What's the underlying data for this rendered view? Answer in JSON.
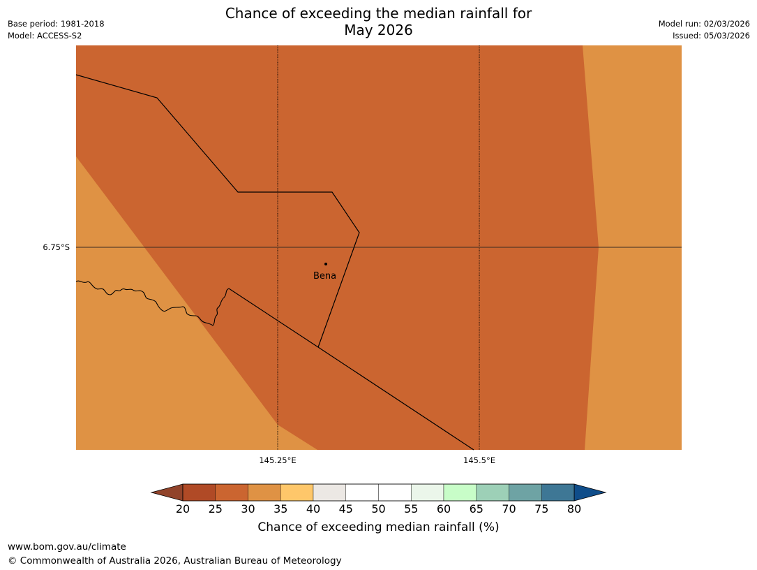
{
  "header": {
    "title_line1": "Chance of exceeding the median rainfall for",
    "title_line2": "May 2026",
    "base_period": "Base period: 1981-2018",
    "model": "Model: ACCESS-S2",
    "model_run": "Model run: 02/03/2026",
    "issued": "Issued: 05/03/2026"
  },
  "map": {
    "lat_label": "6.75°S",
    "lon_labels": [
      "145.25°E",
      "145.5°E"
    ],
    "place_name": "Bena",
    "colors": {
      "band_25_30": "#cb6530",
      "band_30_35": "#df9244",
      "boundary": "#000000",
      "gridline": "#3a2a22"
    }
  },
  "colorbar": {
    "ticks": [
      "20",
      "25",
      "30",
      "35",
      "40",
      "45",
      "50",
      "55",
      "60",
      "65",
      "70",
      "75",
      "80"
    ],
    "under_color": "#91432a",
    "over_color": "#0f4d8a",
    "colors": [
      "#b04a26",
      "#cb6530",
      "#df9244",
      "#fec76a",
      "#ece8e4",
      "#ffffff",
      "#ffffff",
      "#ebf6ea",
      "#c8fdc8",
      "#9dd0b7",
      "#6ea3a4",
      "#3e7795"
    ],
    "label": "Chance of exceeding median rainfall (%)"
  },
  "footer": {
    "url": "www.bom.gov.au/climate",
    "copyright": "© Commonwealth of Australia 2026, Australian Bureau of Meteorology"
  }
}
